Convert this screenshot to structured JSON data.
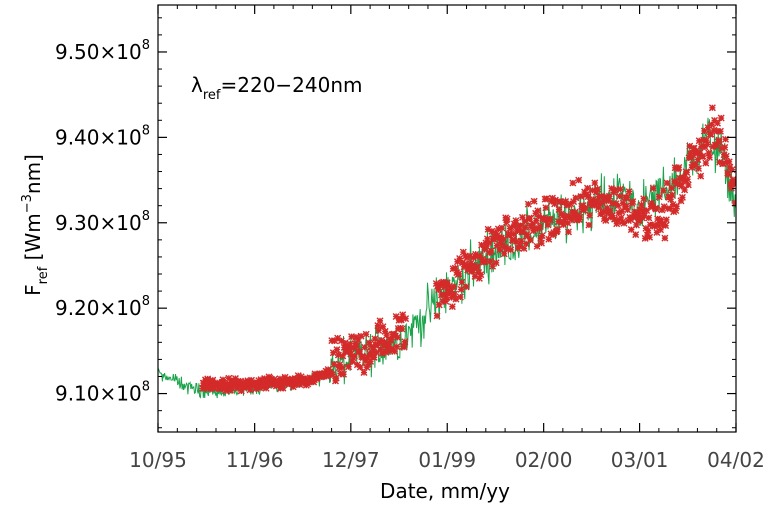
{
  "chart_data": {
    "type": "scatter",
    "xlabel": "Date, mm/yy",
    "ylabel": {
      "main": "F",
      "sub": "ref",
      "unit": "[Wm",
      "unit_sup": "−3",
      "unit_tail": "nm]"
    },
    "annotation": {
      "main": "λ",
      "sub": "ref",
      "tail": "=220−240nm"
    },
    "x_ticks": [
      {
        "date": "1995-10-01",
        "label": "10/95"
      },
      {
        "date": "1996-11-01",
        "label": "11/96"
      },
      {
        "date": "1997-12-01",
        "label": "12/97"
      },
      {
        "date": "1999-01-01",
        "label": "01/99"
      },
      {
        "date": "2000-02-01",
        "label": "02/00"
      },
      {
        "date": "2001-03-01",
        "label": "03/01"
      },
      {
        "date": "2002-04-01",
        "label": "04/02"
      }
    ],
    "xlim": [
      "1995-10-01",
      "2002-04-01"
    ],
    "y_ticks": [
      {
        "value": 910000000,
        "mant": "9.10×10",
        "exp": "8"
      },
      {
        "value": 920000000,
        "mant": "9.20×10",
        "exp": "8"
      },
      {
        "value": 930000000,
        "mant": "9.30×10",
        "exp": "8"
      },
      {
        "value": 940000000,
        "mant": "9.40×10",
        "exp": "8"
      },
      {
        "value": 950000000,
        "mant": "9.50×10",
        "exp": "8"
      }
    ],
    "ylim": [
      905500000,
      955500000
    ],
    "series": [
      {
        "style": "line",
        "color": "#1aa34a",
        "trend": [
          {
            "date": "1995-10-01",
            "value": 912500000
          },
          {
            "date": "1996-03-01",
            "value": 910500000
          },
          {
            "date": "1996-07-01",
            "value": 910000000
          },
          {
            "date": "1997-01-01",
            "value": 911000000
          },
          {
            "date": "1997-07-01",
            "value": 911500000
          },
          {
            "date": "1997-12-01",
            "value": 914000000
          },
          {
            "date": "1998-07-01",
            "value": 916500000
          },
          {
            "date": "1999-01-01",
            "value": 922000000
          },
          {
            "date": "1999-07-01",
            "value": 926500000
          },
          {
            "date": "2000-02-01",
            "value": 929500000
          },
          {
            "date": "2000-08-01",
            "value": 932000000
          },
          {
            "date": "2001-01-01",
            "value": 933500000
          },
          {
            "date": "2001-03-01",
            "value": 931500000
          },
          {
            "date": "2001-08-01",
            "value": 935000000
          },
          {
            "date": "2001-12-01",
            "value": 940000000
          },
          {
            "date": "2002-02-01",
            "value": 938000000
          },
          {
            "date": "2002-04-01",
            "value": 932000000
          }
        ]
      },
      {
        "style": "marker",
        "marker": "asterisk",
        "color": "#d42a2a",
        "trend": [
          {
            "date": "1996-04-01",
            "value": 911000000
          },
          {
            "date": "1996-11-01",
            "value": 911000000
          },
          {
            "date": "1997-07-01",
            "value": 911500000
          },
          {
            "date": "1997-12-01",
            "value": 914500000
          },
          {
            "date": "1998-06-01",
            "value": 916500000
          },
          {
            "date": "1999-01-01",
            "value": 922500000
          },
          {
            "date": "1999-08-01",
            "value": 928000000
          },
          {
            "date": "2000-02-01",
            "value": 930000000
          },
          {
            "date": "2000-09-01",
            "value": 932500000
          },
          {
            "date": "2001-02-01",
            "value": 931500000
          },
          {
            "date": "2001-06-01",
            "value": 930500000
          },
          {
            "date": "2001-10-01",
            "value": 937000000
          },
          {
            "date": "2002-01-01",
            "value": 941000000
          },
          {
            "date": "2002-04-01",
            "value": 934000000
          }
        ]
      }
    ],
    "grid": false,
    "legend": "none"
  }
}
